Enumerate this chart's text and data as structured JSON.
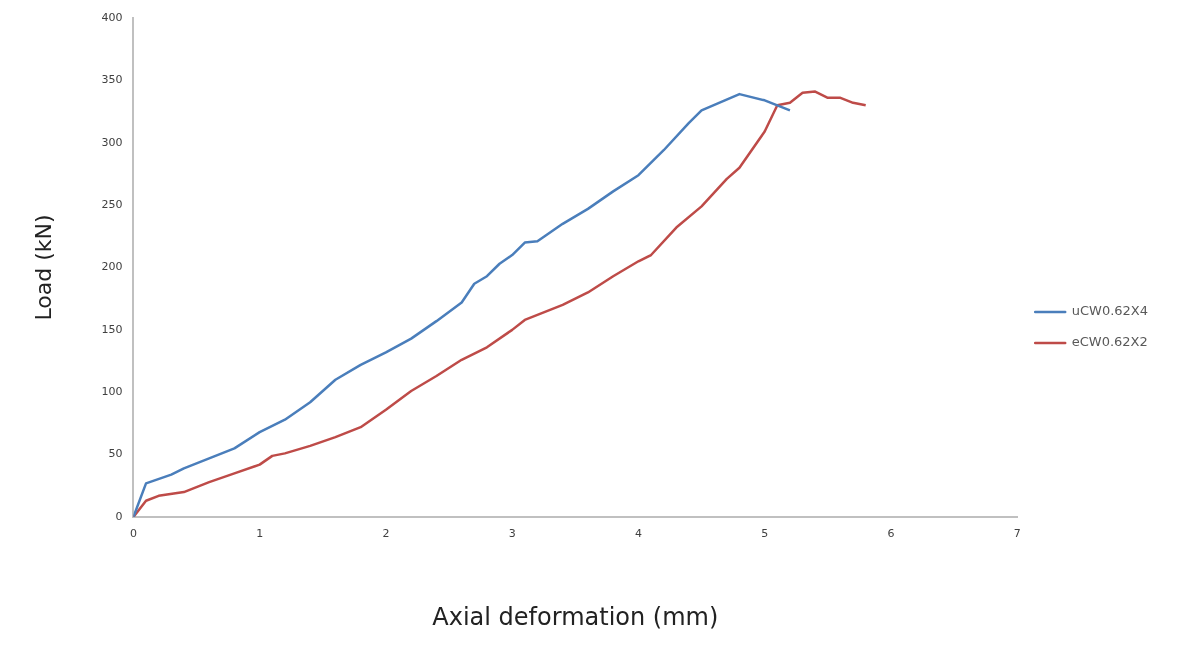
{
  "chart_data": {
    "type": "line",
    "xlabel": "Axial deformation (mm)",
    "ylabel": "Load (kN)",
    "xlim": [
      0,
      7
    ],
    "xticks": [
      0,
      1,
      2,
      3,
      4,
      5,
      6,
      7
    ],
    "ylim": [
      0,
      400
    ],
    "yticks": [
      0,
      50,
      100,
      150,
      200,
      250,
      300,
      350,
      400
    ],
    "grid": false,
    "legend": "right",
    "marker": "none",
    "line_style": "solid",
    "series": [
      {
        "name": "uCW0.62X4",
        "color": "#4a7ebb",
        "x": [
          0,
          0.1,
          0.3,
          0.4,
          0.6,
          0.8,
          1.0,
          1.2,
          1.4,
          1.6,
          1.8,
          2.0,
          2.2,
          2.4,
          2.6,
          2.7,
          2.8,
          2.9,
          3.0,
          3.1,
          3.2,
          3.4,
          3.6,
          3.8,
          4.0,
          4.2,
          4.4,
          4.5,
          4.8,
          5.0,
          5.2
        ],
        "values": [
          0,
          27,
          34,
          39,
          47,
          55,
          68,
          78,
          92,
          110,
          122,
          132,
          143,
          157,
          172,
          187,
          193,
          203,
          210,
          220,
          221,
          235,
          247,
          261,
          274,
          294,
          316,
          326,
          339,
          334,
          326
        ]
      },
      {
        "name": "eCW0.62X2",
        "color": "#be4b48",
        "x": [
          0,
          0.1,
          0.2,
          0.4,
          0.6,
          0.8,
          1.0,
          1.1,
          1.2,
          1.4,
          1.6,
          1.8,
          2.0,
          2.2,
          2.4,
          2.6,
          2.8,
          3.0,
          3.1,
          3.4,
          3.6,
          3.8,
          4.0,
          4.1,
          4.3,
          4.5,
          4.7,
          4.8,
          5.0,
          5.1,
          5.2,
          5.3,
          5.4,
          5.5,
          5.6,
          5.7,
          5.8
        ],
        "values": [
          0,
          13,
          17,
          20,
          28,
          35,
          42,
          49,
          51,
          57,
          64,
          72,
          86,
          101,
          113,
          126,
          136,
          150,
          158,
          170,
          180,
          193,
          205,
          210,
          232,
          249,
          271,
          280,
          309,
          330,
          332,
          340,
          341,
          336,
          336,
          332,
          330
        ]
      }
    ]
  }
}
